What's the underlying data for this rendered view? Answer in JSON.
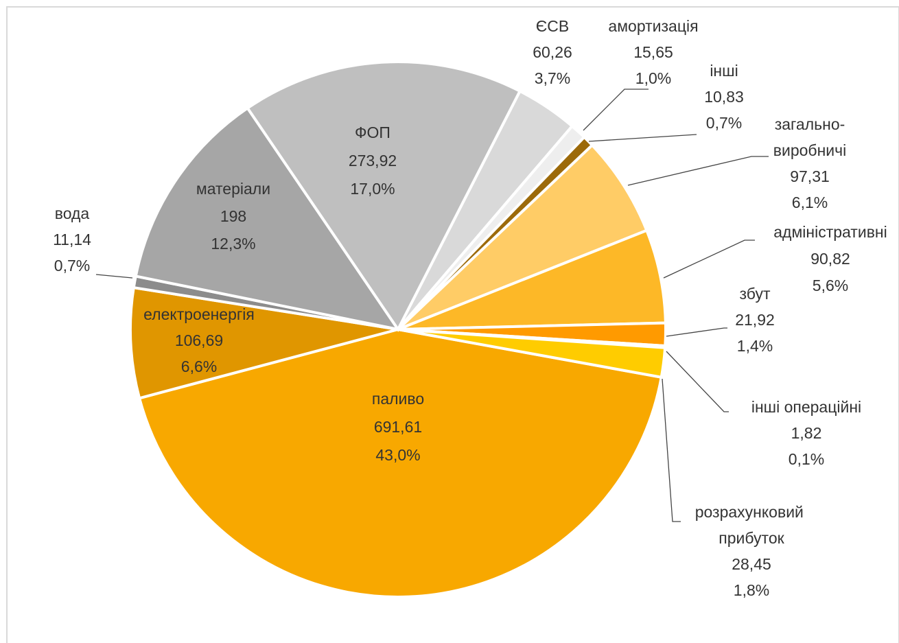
{
  "chart_data": {
    "type": "pie",
    "categories": [
      "паливо",
      "електроенергія",
      "вода",
      "матеріали",
      "ФОП",
      "ЄСВ",
      "амортизація",
      "інші",
      "загально-виробничі",
      "адміністративні",
      "збут",
      "інші операційні",
      "розрахунковий прибуток"
    ],
    "values": [
      691.61,
      106.69,
      11.14,
      198,
      273.92,
      60.26,
      15.65,
      10.83,
      97.31,
      90.82,
      21.92,
      1.82,
      28.45
    ],
    "value_labels": [
      "691,61",
      "106,69",
      "11,14",
      "198",
      "273,92",
      "60,26",
      "15,65",
      "10,83",
      "97,31",
      "90,82",
      "21,92",
      "1,82",
      "28,45"
    ],
    "percent_labels": [
      "43,0%",
      "6,6%",
      "0,7%",
      "12,3%",
      "17,0%",
      "3,7%",
      "1,0%",
      "0,7%",
      "6,1%",
      "5,6%",
      "1,4%",
      "0,1%",
      "1,8%"
    ],
    "colors": [
      "#f8a800",
      "#e09600",
      "#8c8c8c",
      "#a6a6a6",
      "#bfbfbf",
      "#d9d9d9",
      "#eeeeee",
      "#9c6a0a",
      "#ffcc66",
      "#fdb827",
      "#ff9a00",
      "#ffb000",
      "#ffcc00"
    ]
  }
}
